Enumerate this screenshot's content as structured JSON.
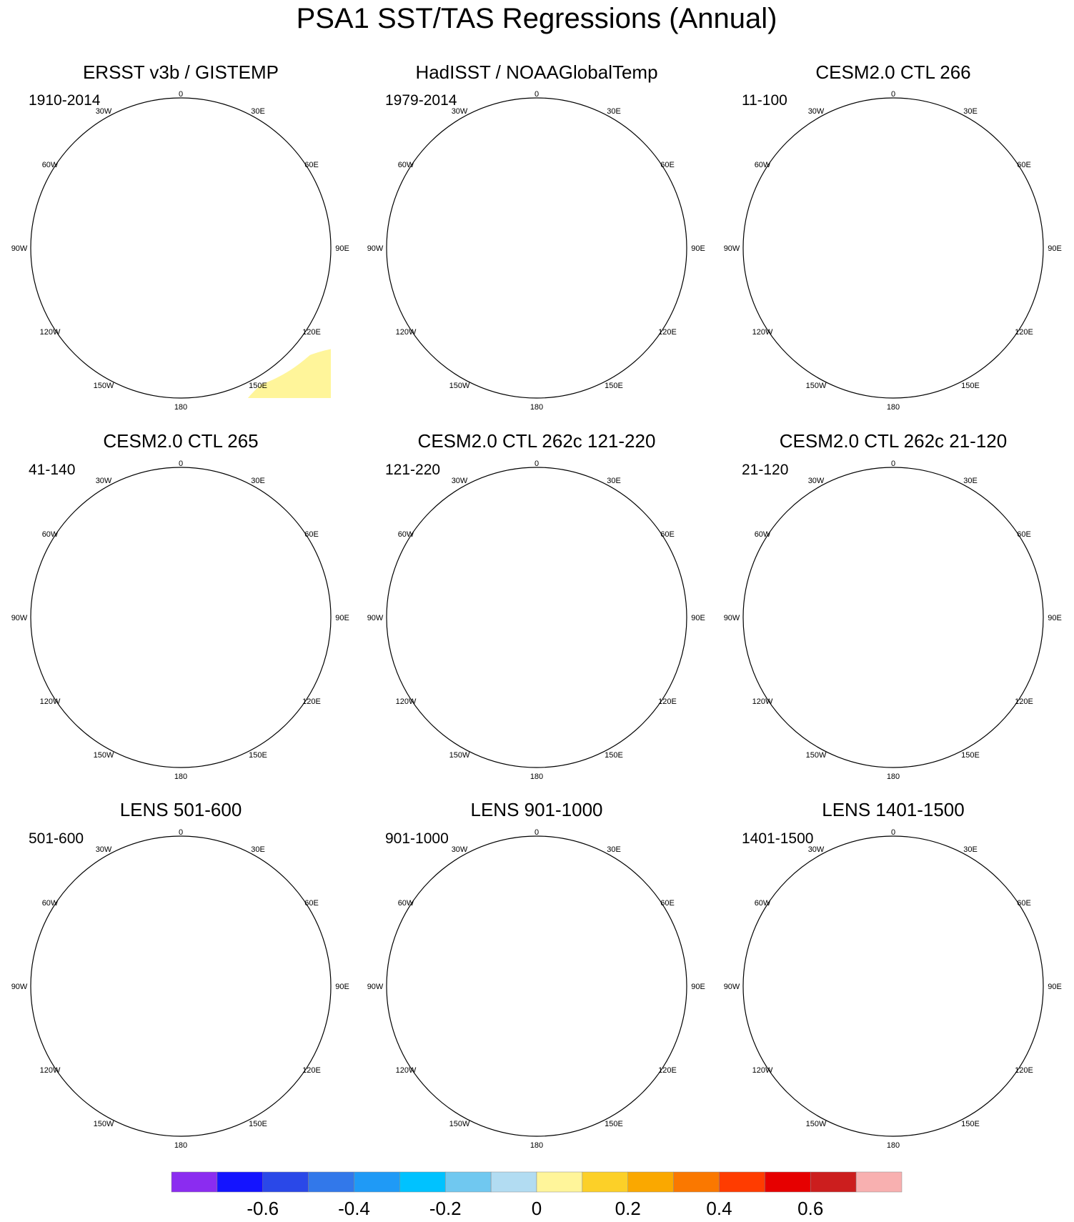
{
  "title": "PSA1 SST/TAS Regressions (Annual)",
  "lon_labels": [
    "0",
    "30E",
    "60E",
    "90E",
    "120E",
    "150E",
    "180",
    "150W",
    "120W",
    "90W",
    "60W",
    "30W"
  ],
  "panels": [
    {
      "title": "ERSST v3b / GISTEMP",
      "period": "1910-2014"
    },
    {
      "title": "HadISST / NOAAGlobalTemp",
      "period": "1979-2014"
    },
    {
      "title": "CESM2.0 CTL 266",
      "period": "11-100"
    },
    {
      "title": "CESM2.0 CTL 265",
      "period": "41-140"
    },
    {
      "title": "CESM2.0 CTL 262c 121-220",
      "period": "121-220"
    },
    {
      "title": "CESM2.0 CTL 262c 21-120",
      "period": "21-120"
    },
    {
      "title": "LENS 501-600",
      "period": "501-600"
    },
    {
      "title": "LENS 901-1000",
      "period": "901-1000"
    },
    {
      "title": "LENS 1401-1500",
      "period": "1401-1500"
    }
  ],
  "colorbar": {
    "colors": [
      "#8b2cf0",
      "#1414ff",
      "#2a48e8",
      "#3278ea",
      "#1f9af6",
      "#00c2ff",
      "#70c8f0",
      "#b2dcf2",
      "#fff59a",
      "#fcd028",
      "#faa800",
      "#fa7800",
      "#ff3c00",
      "#e60000",
      "#cc1e1e",
      "#f8b0b0"
    ],
    "tick_labels": [
      "-0.6",
      "-0.4",
      "-0.2",
      "0",
      "0.2",
      "0.4",
      "0.6"
    ]
  },
  "palette": {
    "neg_strong": "#00c2ff",
    "neg_med": "#70c8f0",
    "neg_weak": "#b2dcf2",
    "pos_weak": "#fff59a",
    "pos_med": "#fcd028",
    "pos_strong": "#faa800",
    "pos_vstrong": "#fa7800",
    "land": "#ffffff",
    "coast": "#888888"
  }
}
